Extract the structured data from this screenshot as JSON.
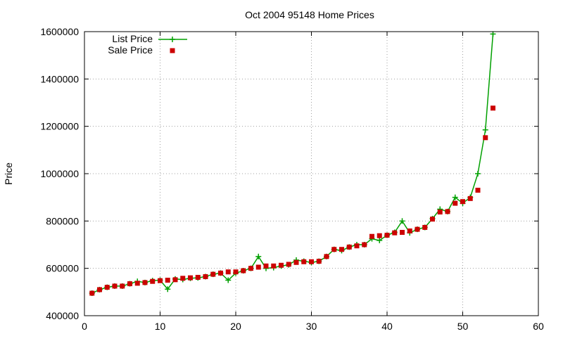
{
  "chart_data": {
    "type": "line",
    "title": "Oct 2004 95148 Home Prices",
    "xlabel": "",
    "ylabel": "Price",
    "xlim": [
      0,
      60
    ],
    "ylim": [
      400000,
      1600000
    ],
    "x_ticks": [
      0,
      10,
      20,
      30,
      40,
      50,
      60
    ],
    "y_ticks": [
      400000,
      600000,
      800000,
      1000000,
      1200000,
      1400000,
      1600000
    ],
    "grid": true,
    "legend_position": "top-left",
    "series": [
      {
        "name": "List Price",
        "style": "line-with-plus-markers",
        "color": "#00a000",
        "x": [
          1,
          2,
          3,
          4,
          5,
          6,
          7,
          8,
          9,
          10,
          11,
          12,
          13,
          14,
          15,
          16,
          17,
          18,
          19,
          20,
          21,
          22,
          23,
          24,
          25,
          26,
          27,
          28,
          29,
          30,
          31,
          32,
          33,
          34,
          35,
          36,
          37,
          38,
          39,
          40,
          41,
          42,
          43,
          44,
          45,
          46,
          47,
          48,
          49,
          50,
          51,
          52,
          53,
          54
        ],
        "values": [
          495000,
          510000,
          520000,
          525000,
          525000,
          535000,
          545000,
          540000,
          548000,
          550000,
          512000,
          555000,
          553000,
          558000,
          560000,
          565000,
          575000,
          580000,
          550000,
          580000,
          590000,
          600000,
          650000,
          600000,
          603000,
          610000,
          615000,
          635000,
          630000,
          625000,
          630000,
          650000,
          680000,
          675000,
          690000,
          700000,
          700000,
          725000,
          718000,
          740000,
          752000,
          800000,
          750000,
          765000,
          773000,
          810000,
          850000,
          840000,
          900000,
          875000,
          900000,
          1000000,
          1185000,
          1590000
        ]
      },
      {
        "name": "Sale Price",
        "style": "square-markers",
        "color": "#cc0000",
        "x": [
          1,
          2,
          3,
          4,
          5,
          6,
          7,
          8,
          9,
          10,
          11,
          12,
          13,
          14,
          15,
          16,
          17,
          18,
          19,
          20,
          21,
          22,
          23,
          24,
          25,
          26,
          27,
          28,
          29,
          30,
          31,
          32,
          33,
          34,
          35,
          36,
          37,
          38,
          39,
          40,
          41,
          42,
          43,
          44,
          45,
          46,
          47,
          48,
          49,
          50,
          51,
          52,
          53,
          54
        ],
        "values": [
          495000,
          510000,
          520000,
          525000,
          525000,
          535000,
          537000,
          540000,
          545000,
          548000,
          550000,
          552000,
          558000,
          560000,
          562000,
          565000,
          575000,
          580000,
          585000,
          585000,
          590000,
          600000,
          605000,
          610000,
          610000,
          613000,
          617000,
          625000,
          628000,
          628000,
          630000,
          650000,
          680000,
          680000,
          690000,
          695000,
          700000,
          735000,
          738000,
          740000,
          750000,
          752000,
          758000,
          765000,
          773000,
          808000,
          838000,
          840000,
          875000,
          882000,
          895000,
          930000,
          1152000,
          1277000
        ]
      }
    ]
  }
}
